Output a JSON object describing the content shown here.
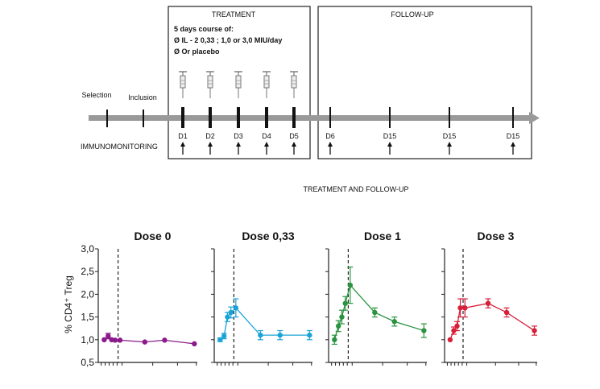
{
  "timeline": {
    "treatment_title": "TREATMENT",
    "followup_title": "FOLLOW-UP",
    "course_lines": [
      "5 days course of:",
      "Ø IL - 2  0,33 ; 1,0 or 3,0 MIU/day",
      "Ø Or placebo"
    ],
    "selection_label": "Selection",
    "inclusion_label": "Inclusion",
    "immunomonitoring_label": "IMMUNOMONITORING",
    "day_labels": [
      "D1",
      "D2",
      "D3",
      "D4",
      "D5",
      "D6",
      "D15",
      "D15",
      "D15"
    ],
    "caption": "TREATMENT AND FOLLOW-UP",
    "colors": {
      "axis": "#999999",
      "frame": "#222222"
    }
  },
  "chart_data": {
    "type": "line",
    "ylabel": "% CD4⁺ Treg",
    "ylim": [
      0.5,
      3.0
    ],
    "yticks": [
      "0,5",
      "1,0",
      "1,5",
      "2,0",
      "2,5",
      "3,0"
    ],
    "panels": [
      {
        "title": "Dose 0",
        "color": "#8b1a8b",
        "points": [
          {
            "y": 1.0,
            "err": 0.03
          },
          {
            "y": 1.08,
            "err": 0.06
          },
          {
            "y": 1.0,
            "err": 0.03
          },
          {
            "y": 0.99,
            "err": 0.03
          },
          {
            "y": 0.99,
            "err": 0.03
          },
          {
            "y": 0.95,
            "err": 0.02
          },
          {
            "y": 0.99,
            "err": 0.02
          },
          {
            "y": 0.91,
            "err": 0.02
          }
        ]
      },
      {
        "title": "Dose 0,33",
        "color": "#1aa3d6",
        "points": [
          {
            "y": 1.0,
            "err": 0.04
          },
          {
            "y": 1.08,
            "err": 0.06
          },
          {
            "y": 1.5,
            "err": 0.1
          },
          {
            "y": 1.6,
            "err": 0.12
          },
          {
            "y": 1.7,
            "err": 0.2
          },
          {
            "y": 1.1,
            "err": 0.1
          },
          {
            "y": 1.1,
            "err": 0.1
          },
          {
            "y": 1.1,
            "err": 0.1
          }
        ]
      },
      {
        "title": "Dose 1",
        "color": "#2a9340",
        "points": [
          {
            "y": 1.0,
            "err": 0.1
          },
          {
            "y": 1.3,
            "err": 0.12
          },
          {
            "y": 1.5,
            "err": 0.15
          },
          {
            "y": 1.8,
            "err": 0.15
          },
          {
            "y": 2.2,
            "err": 0.4
          },
          {
            "y": 1.6,
            "err": 0.1
          },
          {
            "y": 1.4,
            "err": 0.1
          },
          {
            "y": 1.2,
            "err": 0.15
          }
        ]
      },
      {
        "title": "Dose 3",
        "color": "#d6203a",
        "points": [
          {
            "y": 1.0,
            "err": 0.03
          },
          {
            "y": 1.2,
            "err": 0.08
          },
          {
            "y": 1.3,
            "err": 0.1
          },
          {
            "y": 1.7,
            "err": 0.2
          },
          {
            "y": 1.7,
            "err": 0.2
          },
          {
            "y": 1.8,
            "err": 0.1
          },
          {
            "y": 1.6,
            "err": 0.1
          },
          {
            "y": 1.2,
            "err": 0.1
          }
        ]
      }
    ]
  }
}
